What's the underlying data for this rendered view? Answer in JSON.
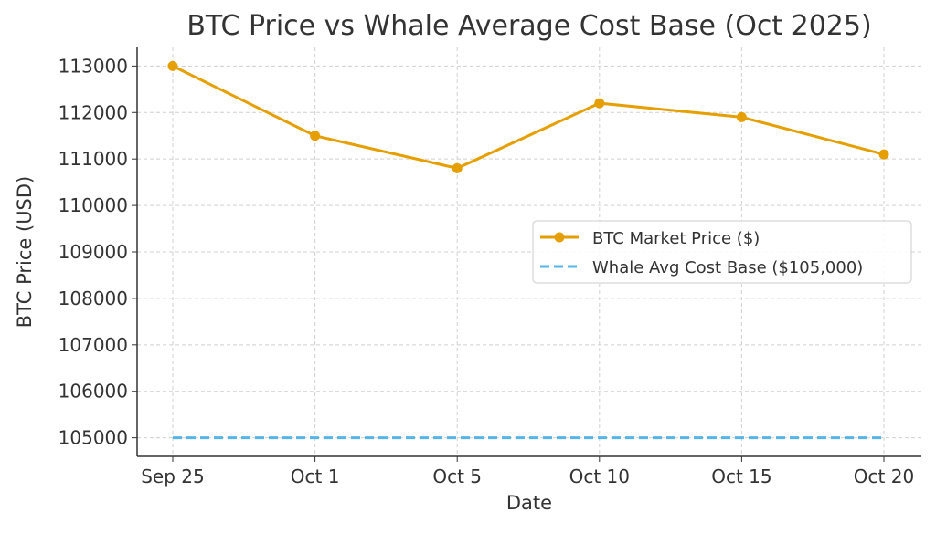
{
  "chart_data": {
    "type": "line",
    "title": "BTC Price vs Whale Average Cost Base (Oct 2025)",
    "xlabel": "Date",
    "ylabel": "BTC Price (USD)",
    "categories": [
      "Sep 25",
      "Oct 1",
      "Oct 5",
      "Oct 10",
      "Oct 15",
      "Oct 20"
    ],
    "yticks": [
      105000,
      106000,
      107000,
      108000,
      109000,
      110000,
      111000,
      112000,
      113000
    ],
    "ylim": [
      104600,
      113400
    ],
    "grid": true,
    "legend_position": "center-right",
    "series": [
      {
        "name": "BTC Market Price ($)",
        "values": [
          113000,
          111500,
          110800,
          112200,
          111900,
          111100
        ],
        "color": "#E69F00",
        "style": "solid-marker"
      },
      {
        "name": "Whale Avg Cost Base ($105,000)",
        "values": [
          105000,
          105000,
          105000,
          105000,
          105000,
          105000
        ],
        "color": "#56B4E9",
        "style": "dashed"
      }
    ]
  }
}
